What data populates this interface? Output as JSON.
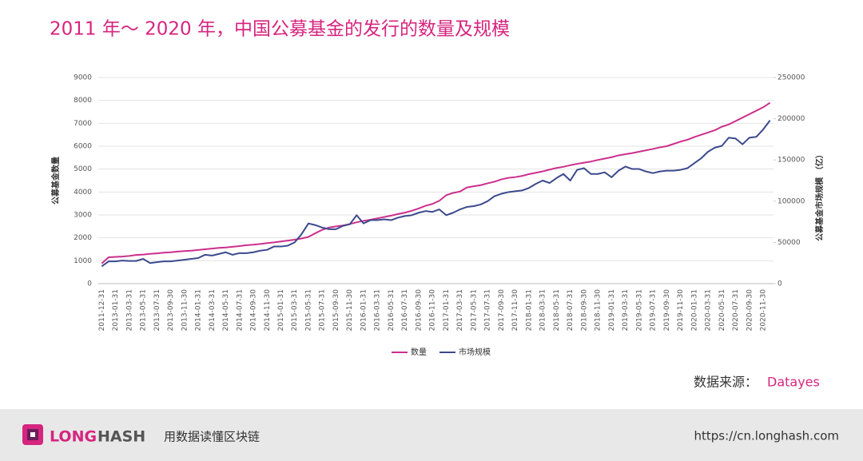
{
  "chart_data": {
    "type": "line",
    "title": "2011 年～ 2020 年，中国公募基金的发行的数量及规模",
    "ylabel": "公募基金数量",
    "y2label": "公募基金市场规模 （亿）",
    "categories": [
      "2011-12-31",
      null,
      "2013-01-31",
      null,
      "2013-03-31",
      null,
      "2013-05-31",
      null,
      "2013-07-31",
      null,
      "2013-09-30",
      null,
      "2013-11-30",
      null,
      "2014-01-31",
      null,
      "2014-03-31",
      null,
      "2014-05-31",
      null,
      "2014-07-31",
      null,
      "2014-09-30",
      null,
      "2014-11-30",
      null,
      "2015-01-31",
      null,
      "2015-03-31",
      null,
      "2015-05-31",
      null,
      "2015-07-31",
      null,
      "2015-09-30",
      null,
      "2015-11-30",
      null,
      "2016-01-31",
      null,
      "2016-03-31",
      null,
      "2016-05-31",
      null,
      "2016-07-31",
      null,
      "2016-09-30",
      null,
      "2016-11-30",
      null,
      "2017-01-31",
      null,
      "2017-03-31",
      null,
      "2017-05-31",
      null,
      "2017-07-31",
      null,
      "2017-09-30",
      null,
      "2017-11-30",
      null,
      "2018-01-31",
      null,
      "2018-03-31",
      null,
      "2018-05-31",
      null,
      "2018-07-31",
      null,
      "2018-09-30",
      null,
      "2018-11-30",
      null,
      "2019-01-31",
      null,
      "2019-03-31",
      null,
      "2019-05-31",
      null,
      "2019-07-31",
      null,
      "2019-09-30",
      null,
      "2019-11-30",
      null,
      "2020-01-31",
      null,
      "2020-03-31",
      null,
      "2020-05-31",
      null,
      "2020-07-31",
      null,
      "2020-09-30",
      null,
      "2020-11-30",
      null
    ],
    "series": [
      {
        "name": "数量",
        "color": "#cc2f8c",
        "values": [
          880,
          1150,
          1170,
          1180,
          1210,
          1250,
          1270,
          1300,
          1320,
          1350,
          1370,
          1400,
          1420,
          1440,
          1470,
          1500,
          1530,
          1560,
          1580,
          1610,
          1640,
          1680,
          1700,
          1730,
          1770,
          1800,
          1840,
          1880,
          1920,
          1970,
          2040,
          2200,
          2350,
          2450,
          2500,
          2540,
          2600,
          2680,
          2740,
          2790,
          2850,
          2910,
          2970,
          3040,
          3100,
          3180,
          3280,
          3400,
          3480,
          3620,
          3860,
          3960,
          4020,
          4200,
          4250,
          4300,
          4380,
          4450,
          4550,
          4620,
          4650,
          4700,
          4780,
          4840,
          4900,
          4980,
          5050,
          5100,
          5170,
          5230,
          5280,
          5330,
          5400,
          5460,
          5520,
          5600,
          5650,
          5700,
          5760,
          5820,
          5880,
          5950,
          6000,
          6100,
          6200,
          6280,
          6400,
          6500,
          6600,
          6700,
          6850,
          6950,
          7100,
          7250,
          7400,
          7550,
          7700,
          7900
        ]
      },
      {
        "name": "市场规模",
        "color": "#3b4a8c",
        "axis": "y2",
        "values": [
          21000,
          27000,
          27000,
          28000,
          27500,
          27500,
          30000,
          25000,
          26000,
          27000,
          27000,
          28000,
          29000,
          30000,
          31000,
          35000,
          34000,
          36000,
          38000,
          35000,
          37000,
          37000,
          38000,
          40000,
          41000,
          45000,
          45000,
          46000,
          50000,
          60000,
          73000,
          71000,
          68000,
          66000,
          66000,
          70000,
          72000,
          83000,
          73000,
          77000,
          77000,
          78000,
          77000,
          80000,
          82000,
          83000,
          86000,
          88000,
          87000,
          90000,
          83000,
          86000,
          90000,
          93000,
          94000,
          96000,
          100000,
          106000,
          109000,
          111000,
          112000,
          113000,
          116000,
          121000,
          125000,
          122000,
          128000,
          133000,
          125000,
          138000,
          140000,
          133000,
          133000,
          135000,
          129000,
          137000,
          142000,
          139000,
          139000,
          136000,
          134000,
          136000,
          137000,
          137000,
          138000,
          140000,
          146000,
          152000,
          160000,
          165000,
          167000,
          177000,
          176000,
          169000,
          177000,
          178000,
          187000,
          198000
        ]
      }
    ],
    "ylim": [
      0,
      9000
    ],
    "yticks": [
      0,
      1000,
      2000,
      3000,
      4000,
      5000,
      6000,
      7000,
      8000,
      9000
    ],
    "y2lim": [
      0,
      250000
    ],
    "y2ticks": [
      0,
      50000,
      100000,
      150000,
      200000,
      250000
    ],
    "grid": true,
    "legend": "bottom",
    "source_label": "数据来源：",
    "source": "Datayes"
  },
  "footer": {
    "logo_left": "LONG",
    "logo_right": "HASH",
    "slogan": "用数据读懂区块链",
    "url": "https://cn.longhash.com"
  }
}
